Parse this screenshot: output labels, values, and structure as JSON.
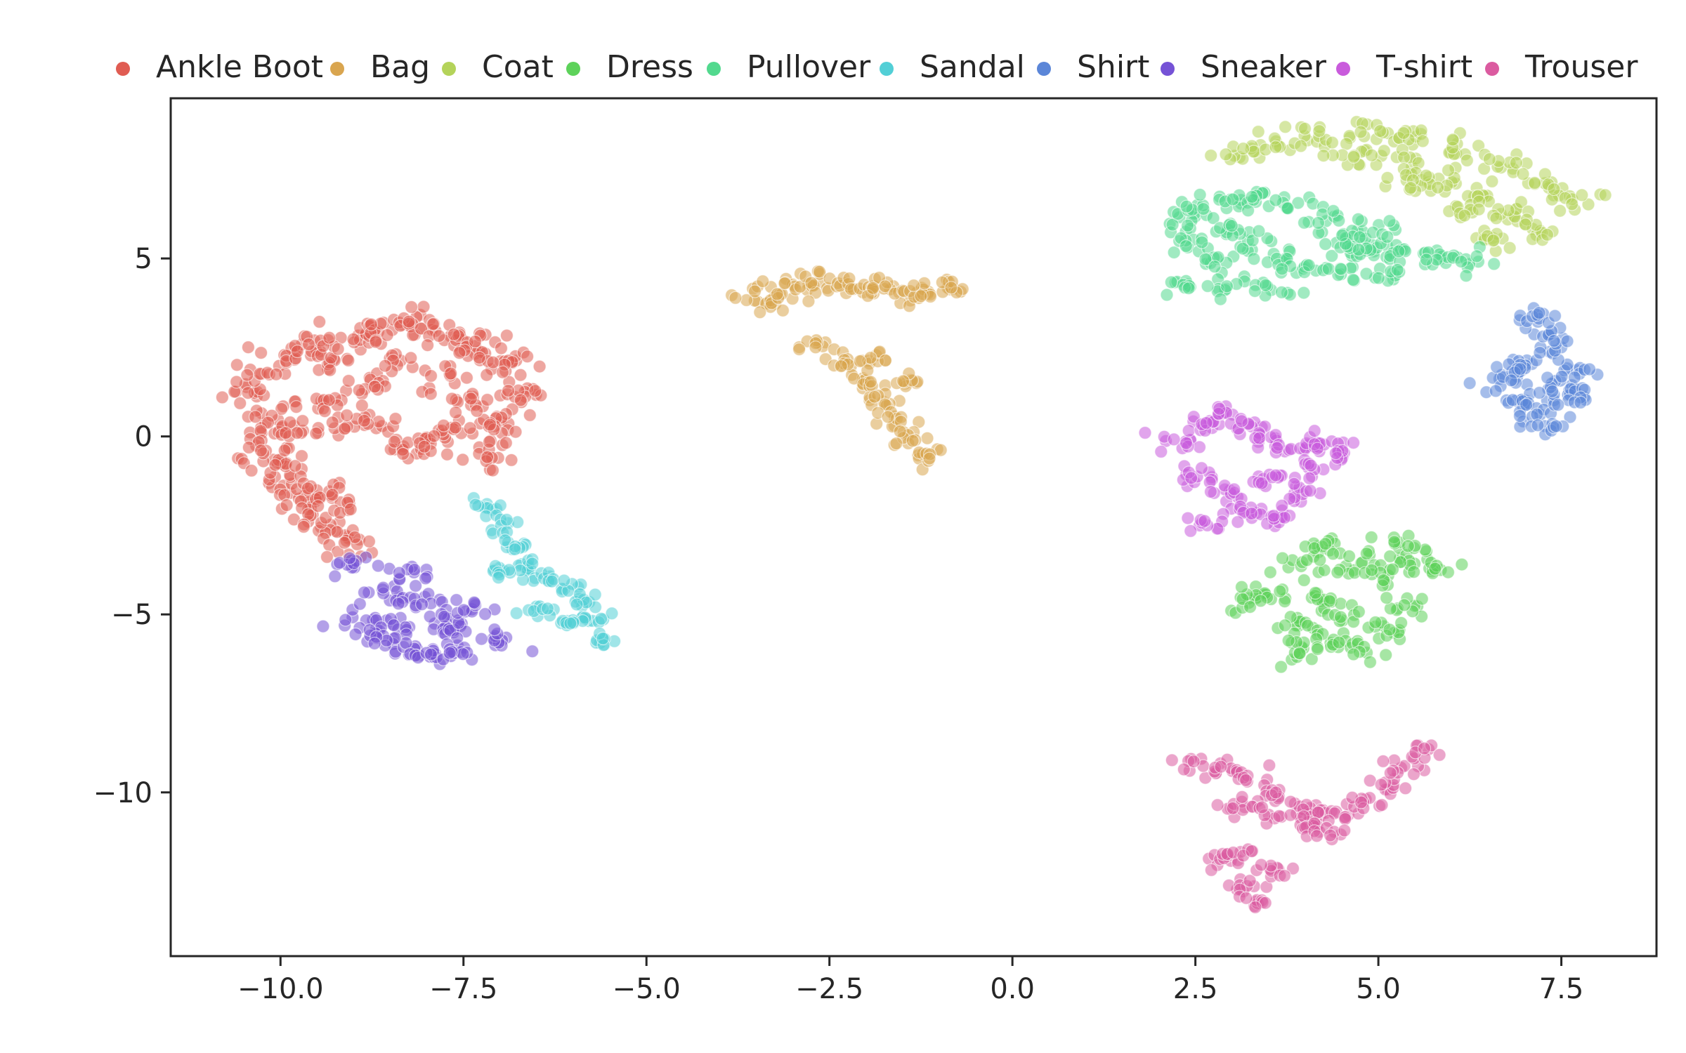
{
  "chart_data": {
    "type": "scatter",
    "title": "",
    "xlabel": "",
    "ylabel": "",
    "xlim": [
      -11.5,
      8.8
    ],
    "ylim": [
      -14.6,
      9.5
    ],
    "xticks": [
      -10.0,
      -7.5,
      -5.0,
      -2.5,
      0.0,
      2.5,
      5.0,
      7.5
    ],
    "xtick_labels": [
      "−10.0",
      "−7.5",
      "−5.0",
      "−2.5",
      "0.0",
      "2.5",
      "5.0",
      "7.5"
    ],
    "yticks": [
      5,
      0,
      -5,
      -10
    ],
    "ytick_labels": [
      "5",
      "0",
      "−5",
      "−10"
    ],
    "grid": false,
    "legend_position": "top",
    "series": [
      {
        "name": "Ankle Boot",
        "color": "#e05c52",
        "points": [
          [
            -10.4,
            1.2
          ],
          [
            -10.2,
            0.6
          ],
          [
            -10.1,
            0.0
          ],
          [
            -10.2,
            -0.6
          ],
          [
            -10.0,
            -1.2
          ],
          [
            -9.8,
            -1.8
          ],
          [
            -9.6,
            -2.3
          ],
          [
            -9.3,
            -2.8
          ],
          [
            -9.0,
            -3.1
          ],
          [
            -10.3,
            1.8
          ],
          [
            -10.0,
            2.3
          ],
          [
            -9.6,
            2.6
          ],
          [
            -9.3,
            2.1
          ],
          [
            -9.0,
            2.7
          ],
          [
            -8.8,
            3.0
          ],
          [
            -8.5,
            3.1
          ],
          [
            -8.2,
            3.2
          ],
          [
            -7.9,
            3.0
          ],
          [
            -7.6,
            2.7
          ],
          [
            -7.3,
            2.5
          ],
          [
            -7.0,
            2.3
          ],
          [
            -6.8,
            1.8
          ],
          [
            -6.7,
            1.2
          ],
          [
            -6.9,
            0.6
          ],
          [
            -7.1,
            0.1
          ],
          [
            -7.2,
            -0.6
          ],
          [
            -7.8,
            1.6
          ],
          [
            -8.4,
            2.0
          ],
          [
            -8.8,
            1.4
          ],
          [
            -9.4,
            1.0
          ],
          [
            -9.7,
            0.2
          ],
          [
            -9.9,
            -0.8
          ],
          [
            -9.5,
            -1.6
          ],
          [
            -9.2,
            -2.0
          ],
          [
            -8.7,
            0.2
          ],
          [
            -8.3,
            -0.3
          ],
          [
            -7.9,
            -0.3
          ],
          [
            -7.6,
            0.2
          ],
          [
            -7.4,
            1.0
          ],
          [
            -9.1,
            0.5
          ]
        ],
        "spread": 0.32,
        "count": 12
      },
      {
        "name": "Bag",
        "color": "#d9a54f",
        "points": [
          [
            -3.5,
            4.0
          ],
          [
            -3.2,
            3.8
          ],
          [
            -3.0,
            4.2
          ],
          [
            -2.7,
            4.4
          ],
          [
            -2.4,
            4.3
          ],
          [
            -2.1,
            4.1
          ],
          [
            -1.8,
            4.2
          ],
          [
            -1.5,
            4.0
          ],
          [
            -1.2,
            4.1
          ],
          [
            -0.9,
            4.1
          ],
          [
            -2.6,
            2.5
          ],
          [
            -2.3,
            2.0
          ],
          [
            -2.0,
            1.5
          ],
          [
            -1.8,
            1.0
          ],
          [
            -1.6,
            0.5
          ],
          [
            -1.4,
            0.0
          ],
          [
            -1.2,
            -0.5
          ],
          [
            -1.8,
            2.1
          ],
          [
            -1.5,
            1.5
          ]
        ],
        "spread": 0.25,
        "count": 11
      },
      {
        "name": "Coat",
        "color": "#b4d35a",
        "points": [
          [
            3.1,
            8.0
          ],
          [
            3.6,
            8.3
          ],
          [
            4.2,
            8.5
          ],
          [
            4.8,
            8.6
          ],
          [
            5.4,
            8.4
          ],
          [
            6.0,
            8.1
          ],
          [
            6.6,
            7.6
          ],
          [
            7.2,
            7.1
          ],
          [
            7.7,
            6.6
          ],
          [
            4.6,
            7.9
          ],
          [
            5.2,
            7.8
          ],
          [
            5.8,
            7.3
          ],
          [
            6.3,
            6.8
          ],
          [
            6.8,
            6.2
          ],
          [
            7.2,
            5.8
          ],
          [
            5.5,
            7.0
          ],
          [
            6.2,
            6.3
          ],
          [
            6.6,
            5.5
          ]
        ],
        "spread": 0.3,
        "count": 12
      },
      {
        "name": "Dress",
        "color": "#5dd25a",
        "points": [
          [
            3.5,
            -4.4
          ],
          [
            3.9,
            -3.6
          ],
          [
            4.3,
            -3.1
          ],
          [
            4.7,
            -3.5
          ],
          [
            5.0,
            -3.9
          ],
          [
            5.4,
            -3.5
          ],
          [
            5.7,
            -3.8
          ],
          [
            4.2,
            -4.5
          ],
          [
            4.6,
            -5.0
          ],
          [
            5.0,
            -5.5
          ],
          [
            5.4,
            -4.8
          ],
          [
            4.0,
            -5.3
          ],
          [
            3.9,
            -6.0
          ],
          [
            4.4,
            -5.8
          ],
          [
            4.8,
            -6.0
          ],
          [
            5.2,
            -3.0
          ],
          [
            3.2,
            -4.6
          ]
        ],
        "spread": 0.28,
        "count": 12
      },
      {
        "name": "Pullover",
        "color": "#52d98e",
        "points": [
          [
            2.3,
            6.0
          ],
          [
            2.6,
            6.4
          ],
          [
            3.0,
            6.6
          ],
          [
            3.4,
            6.7
          ],
          [
            3.8,
            6.5
          ],
          [
            4.2,
            6.1
          ],
          [
            4.6,
            5.6
          ],
          [
            5.0,
            5.2
          ],
          [
            5.4,
            5.1
          ],
          [
            5.8,
            5.0
          ],
          [
            6.2,
            4.9
          ],
          [
            2.4,
            5.4
          ],
          [
            2.8,
            5.0
          ],
          [
            3.3,
            5.3
          ],
          [
            3.7,
            5.0
          ],
          [
            4.1,
            4.7
          ],
          [
            4.5,
            4.6
          ],
          [
            2.3,
            4.2
          ],
          [
            2.9,
            4.2
          ],
          [
            3.5,
            4.1
          ],
          [
            4.6,
            5.2
          ],
          [
            3.0,
            5.8
          ],
          [
            5.2,
            4.6
          ],
          [
            4.9,
            5.8
          ]
        ],
        "spread": 0.27,
        "count": 11
      },
      {
        "name": "Sandal",
        "color": "#52cfd6",
        "points": [
          [
            -7.2,
            -2.0
          ],
          [
            -7.0,
            -2.5
          ],
          [
            -6.8,
            -3.1
          ],
          [
            -6.6,
            -3.6
          ],
          [
            -6.4,
            -3.9
          ],
          [
            -6.1,
            -4.2
          ],
          [
            -5.9,
            -4.6
          ],
          [
            -5.7,
            -5.1
          ],
          [
            -5.6,
            -5.7
          ],
          [
            -7.0,
            -3.8
          ],
          [
            -6.5,
            -4.8
          ],
          [
            -6.1,
            -5.3
          ]
        ],
        "spread": 0.18,
        "count": 10
      },
      {
        "name": "Shirt",
        "color": "#5b86d8",
        "points": [
          [
            6.6,
            1.5
          ],
          [
            6.9,
            1.0
          ],
          [
            7.2,
            0.7
          ],
          [
            7.4,
            1.3
          ],
          [
            7.6,
            1.8
          ],
          [
            7.2,
            2.2
          ],
          [
            7.4,
            2.8
          ],
          [
            7.1,
            3.4
          ],
          [
            7.7,
            1.1
          ],
          [
            6.9,
            1.9
          ],
          [
            7.3,
            0.3
          ]
        ],
        "spread": 0.25,
        "count": 12
      },
      {
        "name": "Sneaker",
        "color": "#7552d6",
        "points": [
          [
            -8.9,
            -5.1
          ],
          [
            -8.6,
            -4.5
          ],
          [
            -8.4,
            -5.3
          ],
          [
            -8.1,
            -4.6
          ],
          [
            -7.8,
            -5.2
          ],
          [
            -7.5,
            -5.5
          ],
          [
            -8.3,
            -6.0
          ],
          [
            -8.0,
            -6.1
          ],
          [
            -7.6,
            -6.0
          ],
          [
            -8.7,
            -5.7
          ],
          [
            -8.2,
            -3.8
          ],
          [
            -7.3,
            -4.9
          ],
          [
            -9.0,
            -3.6
          ],
          [
            -7.0,
            -5.7
          ]
        ],
        "spread": 0.26,
        "count": 12
      },
      {
        "name": "T-shirt",
        "color": "#c95bdc",
        "points": [
          [
            2.3,
            -0.2
          ],
          [
            2.6,
            0.4
          ],
          [
            2.9,
            0.6
          ],
          [
            3.2,
            0.3
          ],
          [
            3.5,
            0.0
          ],
          [
            3.8,
            -0.3
          ],
          [
            4.2,
            -0.2
          ],
          [
            4.5,
            -0.4
          ],
          [
            2.5,
            -1.1
          ],
          [
            2.9,
            -1.6
          ],
          [
            3.2,
            -2.1
          ],
          [
            3.6,
            -2.3
          ],
          [
            3.9,
            -1.6
          ],
          [
            2.7,
            -2.4
          ],
          [
            3.4,
            -1.2
          ],
          [
            4.0,
            -0.9
          ]
        ],
        "spread": 0.24,
        "count": 12
      },
      {
        "name": "Trouser",
        "color": "#db5ba0",
        "points": [
          [
            2.5,
            -9.3
          ],
          [
            2.9,
            -9.3
          ],
          [
            3.3,
            -9.6
          ],
          [
            3.6,
            -10.1
          ],
          [
            3.9,
            -10.4
          ],
          [
            4.2,
            -10.7
          ],
          [
            4.5,
            -10.6
          ],
          [
            4.8,
            -10.3
          ],
          [
            5.1,
            -9.8
          ],
          [
            5.3,
            -9.3
          ],
          [
            5.6,
            -8.9
          ],
          [
            3.0,
            -10.4
          ],
          [
            3.4,
            -10.6
          ],
          [
            4.0,
            -10.9
          ],
          [
            4.4,
            -11.1
          ],
          [
            2.9,
            -12.0
          ],
          [
            3.1,
            -12.6
          ],
          [
            3.3,
            -13.1
          ],
          [
            3.6,
            -12.2
          ],
          [
            3.1,
            -11.7
          ]
        ],
        "spread": 0.22,
        "count": 10
      }
    ]
  }
}
